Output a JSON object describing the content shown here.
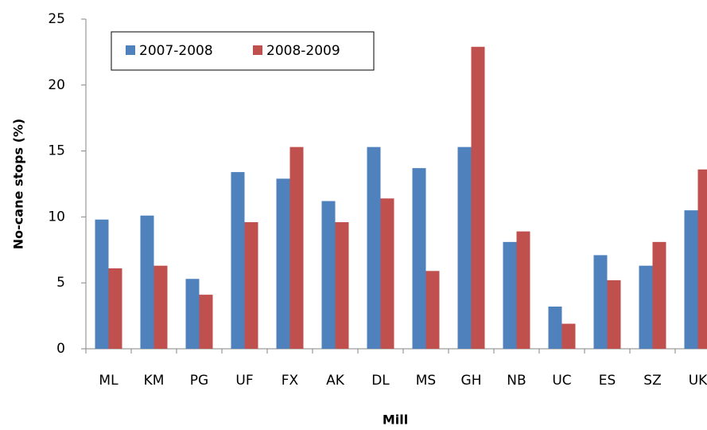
{
  "chart_data": {
    "type": "bar",
    "categories": [
      "ML",
      "KM",
      "PG",
      "UF",
      "FX",
      "AK",
      "DL",
      "MS",
      "GH",
      "NB",
      "UC",
      "ES",
      "SZ",
      "UK"
    ],
    "series": [
      {
        "name": "2007-2008",
        "color": "#4f81bd",
        "values": [
          9.8,
          10.1,
          5.3,
          13.4,
          12.9,
          11.2,
          15.3,
          13.7,
          15.3,
          8.1,
          3.2,
          7.1,
          6.3,
          10.5
        ]
      },
      {
        "name": "2008-2009",
        "color": "#c0504d",
        "values": [
          6.1,
          6.3,
          4.1,
          9.6,
          15.3,
          9.6,
          11.4,
          5.9,
          22.9,
          8.9,
          1.9,
          5.2,
          8.1,
          13.6
        ]
      }
    ],
    "xlabel": "Mill",
    "ylabel": "No-cane stops (%)",
    "ylim": [
      0,
      25
    ],
    "yticks": [
      0,
      5,
      10,
      15,
      20,
      25
    ],
    "grid": false,
    "legend": "top-left"
  }
}
